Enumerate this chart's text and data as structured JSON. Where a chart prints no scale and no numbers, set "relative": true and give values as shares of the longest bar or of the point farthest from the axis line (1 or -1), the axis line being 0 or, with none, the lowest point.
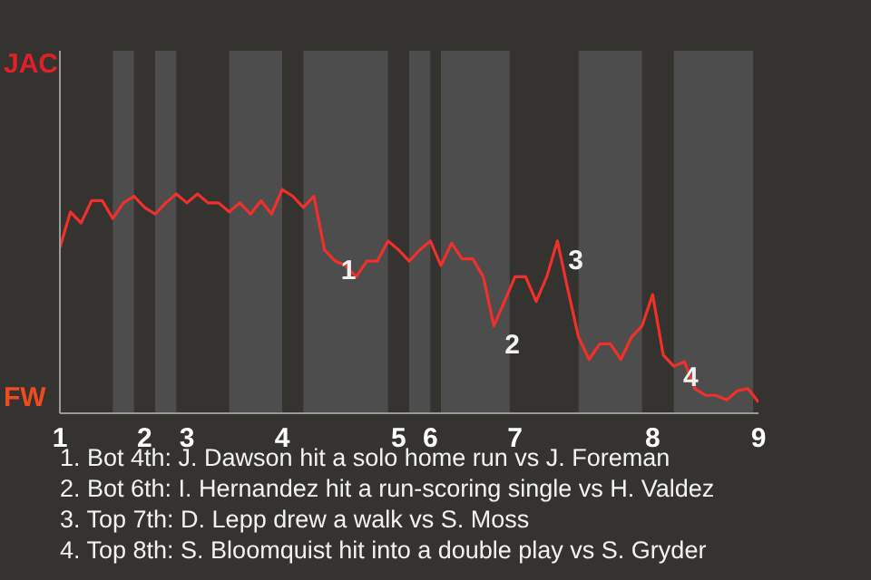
{
  "chart_data": {
    "type": "line",
    "relative": true,
    "categories": [
      "1",
      null,
      null,
      null,
      null,
      null,
      null,
      null,
      "2",
      null,
      null,
      null,
      "3",
      null,
      null,
      null,
      null,
      null,
      null,
      null,
      null,
      "4",
      null,
      null,
      null,
      null,
      null,
      null,
      null,
      null,
      null,
      null,
      "5",
      null,
      null,
      "6",
      null,
      null,
      null,
      null,
      null,
      null,
      null,
      "7",
      null,
      null,
      null,
      null,
      null,
      null,
      null,
      null,
      null,
      null,
      null,
      null,
      "8",
      null,
      null,
      null,
      null,
      null,
      null,
      null,
      null,
      null,
      "9"
    ],
    "series": [
      {
        "color": "#f0302a",
        "values": [
          0.74,
          0.9,
          0.85,
          0.95,
          0.95,
          0.87,
          0.94,
          0.97,
          0.92,
          0.89,
          0.94,
          0.98,
          0.94,
          0.98,
          0.94,
          0.94,
          0.9,
          0.94,
          0.89,
          0.95,
          0.89,
          1,
          0.97,
          0.92,
          0.97,
          0.73,
          0.68,
          0.66,
          0.61,
          0.68,
          0.68,
          0.77,
          0.73,
          0.68,
          0.73,
          0.77,
          0.66,
          0.76,
          0.69,
          0.69,
          0.61,
          0.39,
          0.5,
          0.61,
          0.61,
          0.5,
          0.61,
          0.77,
          0.55,
          0.34,
          0.24,
          0.31,
          0.31,
          0.24,
          0.34,
          0.39,
          0.53,
          0.26,
          0.21,
          0.23,
          0.11,
          0.08,
          0.08,
          0.06,
          0.1,
          0.11,
          0.05
        ]
      }
    ],
    "marker": "none",
    "line_style": "solid",
    "annotations": [
      "JAC",
      "FW",
      "1",
      "2",
      "3",
      "4",
      "1. Bot 4th: J. Dawson hit a solo home run vs J. Foreman",
      "2. Bot 6th: I. Hernandez hit a run-scoring single vs H. Valdez",
      "3. Top 7th: D. Lepp drew a walk vs S. Moss",
      "4. Top 8th: S. Bloomquist hit into a double play vs S. Gryder"
    ]
  }
}
